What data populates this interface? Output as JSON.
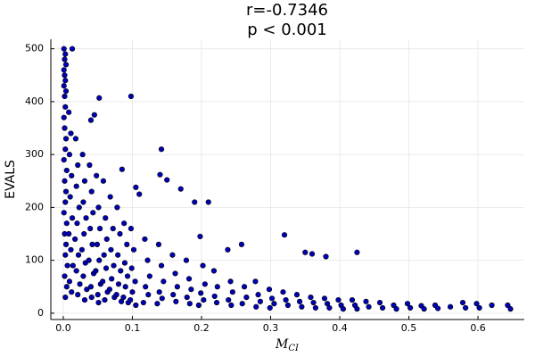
{
  "chart_data": {
    "type": "scatter",
    "title": "r=-0.7346",
    "subtitle": "p < 0.001",
    "xlabel": "M",
    "xlabel_subscript": "CI",
    "ylabel": "EVALS",
    "color": "#0000b4",
    "grid": true,
    "xlim": [
      -0.018,
      0.667
    ],
    "ylim": [
      -12,
      518
    ],
    "xticks": [
      {
        "value": 0,
        "label": "0.0"
      },
      0.1,
      0.2,
      0.3,
      0.4,
      0.5,
      0.6
    ],
    "yticks": [
      0,
      100,
      200,
      300,
      400,
      500
    ],
    "x": [
      0.013,
      0.052,
      0.098,
      0.142,
      0.045,
      0.04,
      0.32,
      0.35,
      0.36,
      0.38,
      0.425,
      0.19,
      0.21,
      0.17,
      0.14,
      0.15,
      0.085,
      0.105,
      0.11,
      0.001,
      0.003,
      0.002,
      0.004,
      0.001,
      0.002,
      0.003,
      0.001,
      0.004,
      0.002,
      0.003,
      0.001,
      0.002,
      0.004,
      0.003,
      0.001,
      0.005,
      0.002,
      0.004,
      0.003,
      0.001,
      0.005,
      0.002,
      0.004,
      0.003,
      0.006,
      0.002,
      0.005,
      0.003,
      0.008,
      0.011,
      0.009,
      0.012,
      0.01,
      0.013,
      0.008,
      0.011,
      0.014,
      0.009,
      0.012,
      0.018,
      0.021,
      0.019,
      0.023,
      0.02,
      0.017,
      0.022,
      0.019,
      0.024,
      0.021,
      0.028,
      0.031,
      0.029,
      0.033,
      0.03,
      0.027,
      0.032,
      0.029,
      0.034,
      0.031,
      0.038,
      0.041,
      0.043,
      0.039,
      0.042,
      0.037,
      0.044,
      0.04,
      0.041,
      0.048,
      0.051,
      0.053,
      0.049,
      0.052,
      0.047,
      0.054,
      0.05,
      0.051,
      0.058,
      0.061,
      0.063,
      0.059,
      0.062,
      0.057,
      0.064,
      0.06,
      0.068,
      0.072,
      0.069,
      0.073,
      0.07,
      0.067,
      0.074,
      0.078,
      0.082,
      0.079,
      0.083,
      0.08,
      0.077,
      0.084,
      0.088,
      0.092,
      0.089,
      0.093,
      0.09,
      0.087,
      0.094,
      0.098,
      0.102,
      0.099,
      0.104,
      0.1,
      0.097,
      0.105,
      0.118,
      0.122,
      0.125,
      0.119,
      0.123,
      0.116,
      0.138,
      0.142,
      0.145,
      0.139,
      0.143,
      0.136,
      0.158,
      0.162,
      0.165,
      0.159,
      0.163,
      0.178,
      0.182,
      0.185,
      0.179,
      0.183,
      0.198,
      0.202,
      0.205,
      0.199,
      0.203,
      0.196,
      0.218,
      0.223,
      0.219,
      0.222,
      0.238,
      0.242,
      0.245,
      0.239,
      0.243,
      0.258,
      0.262,
      0.265,
      0.259,
      0.278,
      0.282,
      0.285,
      0.279,
      0.298,
      0.302,
      0.305,
      0.299,
      0.318,
      0.322,
      0.325,
      0.338,
      0.342,
      0.345,
      0.358,
      0.362,
      0.365,
      0.378,
      0.382,
      0.385,
      0.398,
      0.402,
      0.405,
      0.418,
      0.422,
      0.425,
      0.438,
      0.442,
      0.458,
      0.462,
      0.478,
      0.482,
      0.498,
      0.502,
      0.518,
      0.522,
      0.538,
      0.542,
      0.56,
      0.578,
      0.582,
      0.598,
      0.602,
      0.62,
      0.643,
      0.647
    ],
    "values": [
      500,
      407,
      410,
      310,
      375,
      365,
      148,
      115,
      112,
      107,
      115,
      210,
      210,
      235,
      262,
      252,
      272,
      238,
      225,
      500,
      490,
      480,
      470,
      460,
      450,
      440,
      430,
      420,
      410,
      390,
      370,
      350,
      330,
      310,
      290,
      270,
      250,
      230,
      210,
      190,
      170,
      150,
      130,
      110,
      90,
      70,
      50,
      30,
      380,
      340,
      300,
      260,
      220,
      180,
      150,
      120,
      90,
      60,
      40,
      330,
      280,
      240,
      200,
      170,
      140,
      110,
      80,
      55,
      35,
      300,
      250,
      210,
      180,
      150,
      120,
      95,
      70,
      45,
      25,
      280,
      230,
      190,
      160,
      130,
      100,
      75,
      50,
      30,
      260,
      200,
      160,
      130,
      100,
      80,
      55,
      35,
      20,
      250,
      180,
      140,
      110,
      85,
      60,
      40,
      25,
      220,
      160,
      120,
      90,
      65,
      45,
      30,
      200,
      150,
      110,
      80,
      55,
      35,
      22,
      170,
      130,
      95,
      70,
      50,
      30,
      20,
      160,
      120,
      85,
      60,
      40,
      25,
      15,
      140,
      100,
      70,
      50,
      35,
      20,
      130,
      90,
      60,
      40,
      28,
      18,
      110,
      75,
      50,
      35,
      22,
      100,
      65,
      45,
      30,
      18,
      145,
      90,
      55,
      38,
      25,
      15,
      80,
      50,
      32,
      20,
      120,
      60,
      40,
      25,
      15,
      130,
      50,
      30,
      18,
      60,
      35,
      22,
      12,
      45,
      28,
      18,
      10,
      40,
      25,
      15,
      35,
      22,
      12,
      30,
      20,
      10,
      28,
      18,
      10,
      25,
      15,
      8,
      25,
      15,
      8,
      22,
      12,
      20,
      10,
      15,
      8,
      18,
      10,
      14,
      8,
      15,
      9,
      12,
      20,
      10,
      18,
      10,
      15,
      15,
      8
    ]
  }
}
